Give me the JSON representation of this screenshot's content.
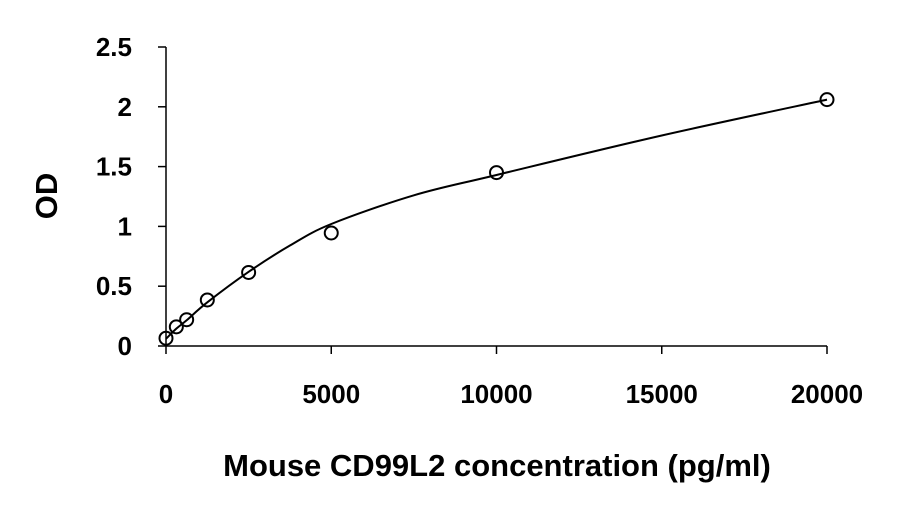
{
  "chart_data": {
    "type": "scatter",
    "title": "",
    "xlabel": "Mouse CD99L2 concentration (pg/ml)",
    "ylabel": "OD",
    "xlim": [
      0,
      20000
    ],
    "ylim": [
      0,
      2.5
    ],
    "xticks": [
      0,
      5000,
      10000,
      15000,
      20000
    ],
    "xtick_labels": [
      "0",
      "5000",
      "10000",
      "15000",
      "20000"
    ],
    "yticks": [
      0,
      0.5,
      1,
      1.5,
      2,
      2.5
    ],
    "ytick_labels": [
      "0",
      "0.5",
      "1",
      "1.5",
      "2",
      "2.5"
    ],
    "grid": false,
    "legend": "none",
    "series": [
      {
        "marker": "open-circle",
        "x": [
          0,
          312.5,
          625,
          1250,
          2500,
          5000,
          10000,
          20000
        ],
        "y": [
          0.065,
          0.16,
          0.22,
          0.385,
          0.615,
          0.945,
          1.45,
          2.06
        ]
      }
    ],
    "trendline": {
      "style": "smooth-curve",
      "x": [
        0,
        312.5,
        625,
        1250,
        2500,
        3750,
        5000,
        7500,
        10000,
        15000,
        20000
      ],
      "y": [
        0.06,
        0.145,
        0.215,
        0.365,
        0.62,
        0.84,
        1.02,
        1.26,
        1.43,
        1.76,
        2.06
      ]
    },
    "colors": {
      "marker": "#000000",
      "line": "#000000",
      "axis": "#000000"
    }
  }
}
